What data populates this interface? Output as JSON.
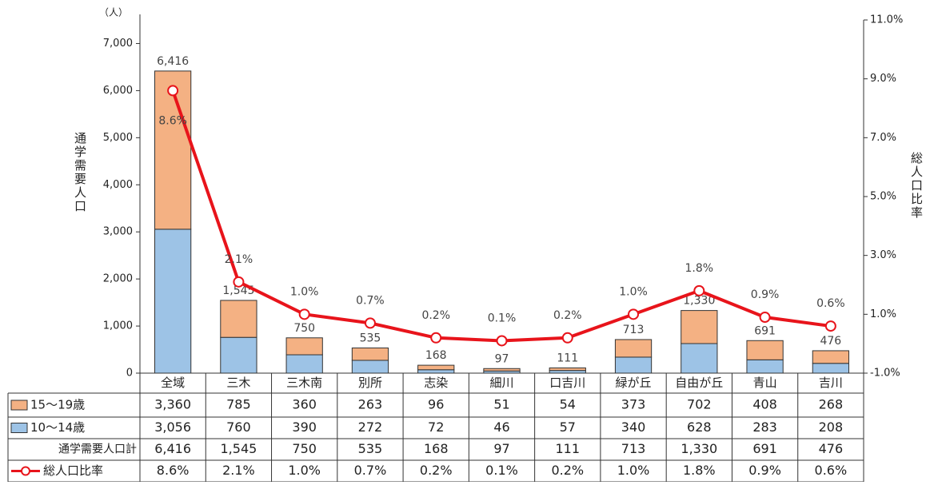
{
  "chart_data": {
    "type": "bar",
    "y_unit": "（人）",
    "y_label": "通学需要人口",
    "y2_label": "総人口比率",
    "categories": [
      "全域",
      "三木",
      "三木南",
      "別所",
      "志染",
      "細川",
      "口吉川",
      "緑が丘",
      "自由が丘",
      "青山",
      "吉川"
    ],
    "series": [
      {
        "name": "15～19歳",
        "color": "#f4b183",
        "values": [
          3360,
          785,
          360,
          263,
          96,
          51,
          54,
          373,
          702,
          408,
          268
        ],
        "value_labels": [
          "3,360",
          "785",
          "360",
          "263",
          "96",
          "51",
          "54",
          "373",
          "702",
          "408",
          "268"
        ]
      },
      {
        "name": "10～14歳",
        "color": "#9dc3e6",
        "values": [
          3056,
          760,
          390,
          272,
          72,
          46,
          57,
          340,
          628,
          283,
          208
        ],
        "value_labels": [
          "3,056",
          "760",
          "390",
          "272",
          "72",
          "46",
          "57",
          "340",
          "628",
          "283",
          "208"
        ]
      },
      {
        "name": "総人口比率",
        "type": "line",
        "axis": "y2",
        "color": "#e8141b",
        "values": [
          8.6,
          2.1,
          1.0,
          0.7,
          0.2,
          0.1,
          0.2,
          1.0,
          1.8,
          0.9,
          0.6
        ],
        "value_labels": [
          "8.6%",
          "2.1%",
          "1.0%",
          "0.7%",
          "0.2%",
          "0.1%",
          "0.2%",
          "1.0%",
          "1.8%",
          "0.9%",
          "0.6%"
        ]
      }
    ],
    "totals": {
      "name": "通学需要人口計",
      "values": [
        6416,
        1545,
        750,
        535,
        168,
        97,
        111,
        713,
        1330,
        691,
        476
      ],
      "value_labels": [
        "6,416",
        "1,545",
        "750",
        "535",
        "168",
        "97",
        "111",
        "713",
        "1,330",
        "691",
        "476"
      ]
    },
    "ylim": [
      0,
      7500
    ],
    "yticks": [
      0,
      {
        "value": 1000,
        "label": "1,000"
      },
      {
        "value": 2000,
        "label": "2,000"
      },
      {
        "value": 3000,
        "label": "3,000"
      },
      {
        "value": 4000,
        "label": "4,000"
      },
      {
        "value": 5000,
        "label": "5,000"
      },
      {
        "value": 6000,
        "label": "6,000"
      },
      {
        "value": 7000,
        "label": "7,000"
      }
    ],
    "y2lim": [
      -1,
      11
    ],
    "y2ticks": [
      {
        "value": -1,
        "label": "-1.0%"
      },
      {
        "value": 1,
        "label": "1.0%"
      },
      {
        "value": 3,
        "label": "3.0%"
      },
      {
        "value": 5,
        "label": "5.0%"
      },
      {
        "value": 7,
        "label": "7.0%"
      },
      {
        "value": 9,
        "label": "9.0%"
      },
      {
        "value": 11,
        "label": "11.0%"
      }
    ]
  }
}
